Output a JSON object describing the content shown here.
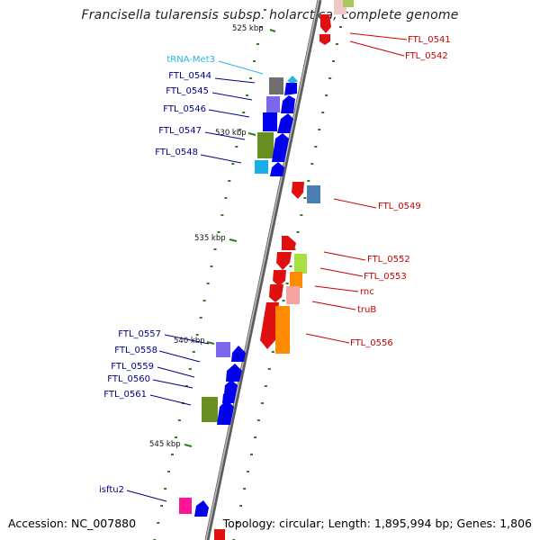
{
  "title": "Francisella tularensis subsp. holarctica, complete genome",
  "footer": {
    "accession": "Accession: NC_007880",
    "topology": "Topology: circular; Length: 1,895,994 bp; Genes: 1,806"
  },
  "colors": {
    "backbone": "#8a8a8a",
    "minus_strand_label": "#00008b",
    "plus_strand_label": "#cc0000",
    "trna_label": "#29b6e6",
    "tick": "#2e7d1e"
  },
  "kbp_ticks": [
    "525 kbp",
    "530 kbp",
    "535 kbp",
    "540 kbp",
    "545 kbp"
  ],
  "genes": [
    {
      "id": "ftl0541",
      "label": "FTL_0541",
      "strand": "plus",
      "color": "#cc0000"
    },
    {
      "id": "ftl0542",
      "label": "FTL_0542",
      "strand": "plus",
      "color": "#cc0000"
    },
    {
      "id": "trnamet3",
      "label": "tRNA-Met3",
      "strand": "minus",
      "color": "#29b6e6"
    },
    {
      "id": "ftl0544",
      "label": "FTL_0544",
      "strand": "minus",
      "color": "#00008b"
    },
    {
      "id": "ftl0545",
      "label": "FTL_0545",
      "strand": "minus",
      "color": "#00008b"
    },
    {
      "id": "ftl0546",
      "label": "FTL_0546",
      "strand": "minus",
      "color": "#00008b"
    },
    {
      "id": "ftl0547",
      "label": "FTL_0547",
      "strand": "minus",
      "color": "#00008b"
    },
    {
      "id": "ftl0548",
      "label": "FTL_0548",
      "strand": "minus",
      "color": "#00008b"
    },
    {
      "id": "ftl0549",
      "label": "FTL_0549",
      "strand": "plus",
      "color": "#cc0000"
    },
    {
      "id": "ftl0552",
      "label": "FTL_0552",
      "strand": "plus",
      "color": "#cc0000"
    },
    {
      "id": "ftl0553",
      "label": "FTL_0553",
      "strand": "plus",
      "color": "#cc0000"
    },
    {
      "id": "rnc",
      "label": "rnc",
      "strand": "plus",
      "color": "#cc0000"
    },
    {
      "id": "trub",
      "label": "truB",
      "strand": "plus",
      "color": "#cc0000"
    },
    {
      "id": "ftl0556",
      "label": "FTL_0556",
      "strand": "plus",
      "color": "#cc0000"
    },
    {
      "id": "ftl0557",
      "label": "FTL_0557",
      "strand": "minus",
      "color": "#00008b"
    },
    {
      "id": "ftl0558",
      "label": "FTL_0558",
      "strand": "minus",
      "color": "#00008b"
    },
    {
      "id": "ftl0559",
      "label": "FTL_0559",
      "strand": "minus",
      "color": "#00008b"
    },
    {
      "id": "ftl0560",
      "label": "FTL_0560",
      "strand": "minus",
      "color": "#00008b"
    },
    {
      "id": "ftl0561",
      "label": "FTL_0561",
      "strand": "minus",
      "color": "#00008b"
    },
    {
      "id": "isftu2",
      "label": "isftu2",
      "strand": "minus",
      "color": "#00008b"
    }
  ]
}
